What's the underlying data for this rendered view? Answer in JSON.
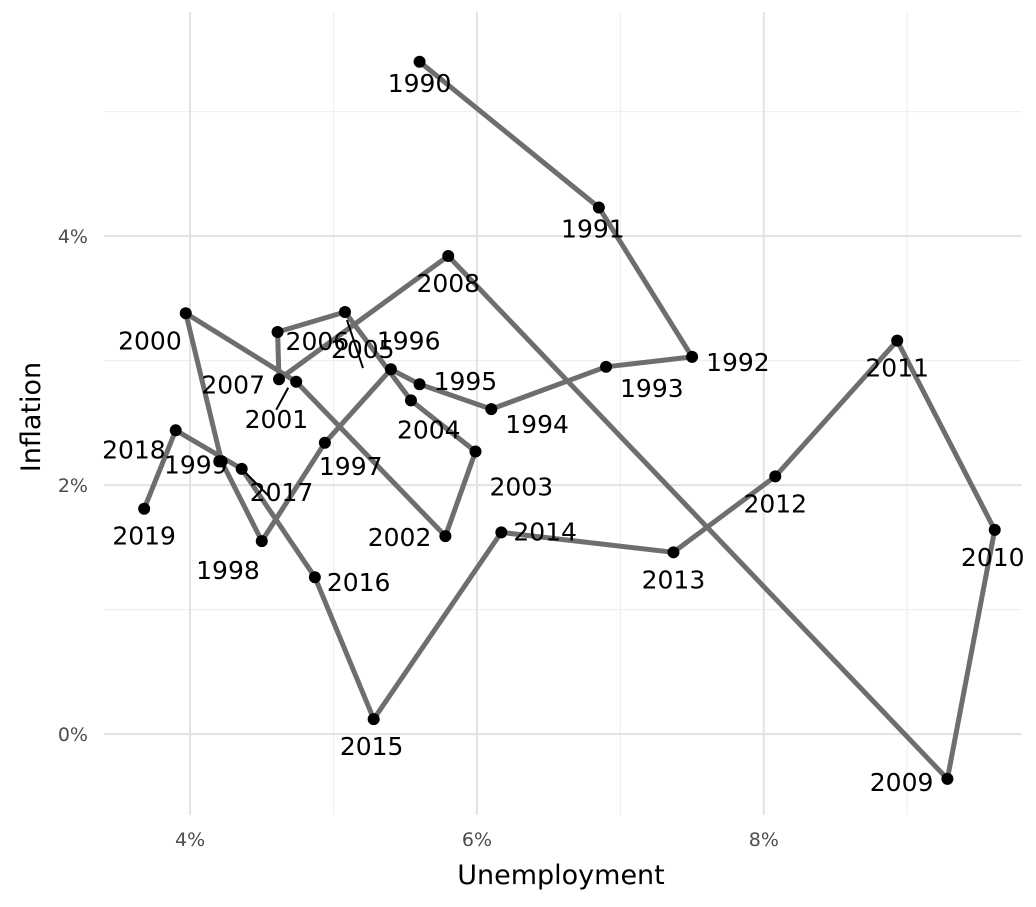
{
  "chart_data": {
    "type": "line",
    "subtype": "connected-scatter",
    "xlabel": "Unemployment",
    "ylabel": "Inflation",
    "x_unit": "%",
    "y_unit": "%",
    "xlim": [
      3.4,
      9.8
    ],
    "ylim": [
      -0.65,
      5.8
    ],
    "x_ticks": [
      {
        "value": 4,
        "label": "4%"
      },
      {
        "value": 6,
        "label": "6%"
      },
      {
        "value": 8,
        "label": "8%"
      }
    ],
    "y_ticks": [
      {
        "value": 0,
        "label": "0%"
      },
      {
        "value": 2,
        "label": "2%"
      },
      {
        "value": 4,
        "label": "4%"
      }
    ],
    "grid": true,
    "line_color": "#6e6e6e",
    "point_color": "#000000",
    "points": [
      {
        "year": "1990",
        "x": 5.6,
        "y": 5.4
      },
      {
        "year": "1991",
        "x": 6.85,
        "y": 4.23
      },
      {
        "year": "1992",
        "x": 7.5,
        "y": 3.03
      },
      {
        "year": "1993",
        "x": 6.9,
        "y": 2.95
      },
      {
        "year": "1994",
        "x": 6.1,
        "y": 2.61
      },
      {
        "year": "1995",
        "x": 5.6,
        "y": 2.81
      },
      {
        "year": "1996",
        "x": 5.4,
        "y": 2.93
      },
      {
        "year": "1997",
        "x": 4.94,
        "y": 2.34
      },
      {
        "year": "1998",
        "x": 4.5,
        "y": 1.55
      },
      {
        "year": "1999",
        "x": 4.22,
        "y": 2.19
      },
      {
        "year": "2000",
        "x": 3.97,
        "y": 3.38
      },
      {
        "year": "2001",
        "x": 4.74,
        "y": 2.83
      },
      {
        "year": "2002",
        "x": 5.78,
        "y": 1.59
      },
      {
        "year": "2003",
        "x": 5.99,
        "y": 2.27
      },
      {
        "year": "2004",
        "x": 5.54,
        "y": 2.68
      },
      {
        "year": "2005",
        "x": 5.08,
        "y": 3.39
      },
      {
        "year": "2006",
        "x": 4.61,
        "y": 3.23
      },
      {
        "year": "2007",
        "x": 4.62,
        "y": 2.85
      },
      {
        "year": "2008",
        "x": 5.8,
        "y": 3.84
      },
      {
        "year": "2009",
        "x": 9.28,
        "y": -0.36
      },
      {
        "year": "2010",
        "x": 9.61,
        "y": 1.64
      },
      {
        "year": "2011",
        "x": 8.93,
        "y": 3.16
      },
      {
        "year": "2012",
        "x": 8.08,
        "y": 2.07
      },
      {
        "year": "2013",
        "x": 7.37,
        "y": 1.46
      },
      {
        "year": "2014",
        "x": 6.17,
        "y": 1.62
      },
      {
        "year": "2015",
        "x": 5.28,
        "y": 0.12
      },
      {
        "year": "2016",
        "x": 4.87,
        "y": 1.26
      },
      {
        "year": "2017",
        "x": 4.36,
        "y": 2.13
      },
      {
        "year": "2018",
        "x": 3.9,
        "y": 2.44
      },
      {
        "year": "2019",
        "x": 3.68,
        "y": 1.81
      }
    ]
  }
}
